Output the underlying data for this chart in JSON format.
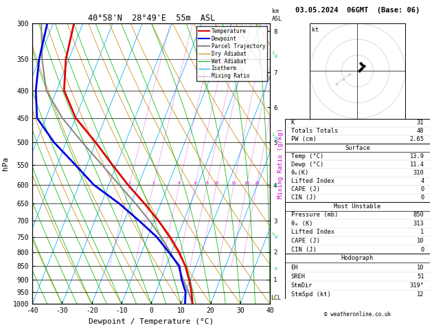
{
  "title_left": "40°58'N  28°49'E  55m  ASL",
  "title_right": "03.05.2024  06GMT  (Base: 06)",
  "xlabel": "Dewpoint / Temperature (°C)",
  "ylabel_left": "hPa",
  "p_levels": [
    300,
    350,
    400,
    450,
    500,
    550,
    600,
    650,
    700,
    750,
    800,
    850,
    900,
    950,
    1000
  ],
  "p_min": 300,
  "p_max": 1000,
  "T_min": -40,
  "T_max": 40,
  "skew_factor": 37,
  "isotherm_color": "#00aaff",
  "dry_adiabat_color": "#cc8800",
  "wet_adiabat_color": "#00bb00",
  "mixing_ratio_color": "#cc00cc",
  "temp_profile_T": [
    13.9,
    12.0,
    9.5,
    6.5,
    2.5,
    -2.5,
    -8.5,
    -15.5,
    -23.5,
    -31.5,
    -40.0,
    -50.0,
    -57.5,
    -61.0,
    -63.0
  ],
  "temp_profile_p": [
    1000,
    950,
    900,
    850,
    800,
    750,
    700,
    650,
    600,
    550,
    500,
    450,
    400,
    350,
    300
  ],
  "dewp_profile_T": [
    11.4,
    10.0,
    7.0,
    4.5,
    -1.0,
    -7.0,
    -15.0,
    -24.0,
    -35.0,
    -44.0,
    -54.0,
    -63.0,
    -67.0,
    -70.0,
    -72.0
  ],
  "dewp_profile_p": [
    1000,
    950,
    900,
    850,
    800,
    750,
    700,
    650,
    600,
    550,
    500,
    450,
    400,
    350,
    300
  ],
  "parcel_T": [
    13.9,
    11.0,
    7.5,
    4.0,
    -0.5,
    -5.5,
    -11.5,
    -18.5,
    -26.5,
    -35.0,
    -44.5,
    -54.5,
    -63.5,
    -69.0,
    -74.0
  ],
  "parcel_p": [
    1000,
    950,
    900,
    850,
    800,
    750,
    700,
    650,
    600,
    550,
    500,
    450,
    400,
    350,
    300
  ],
  "lcl_p": 975,
  "km_ticks": [
    1,
    2,
    3,
    4,
    5,
    6,
    7,
    8
  ],
  "km_pressures": [
    900,
    800,
    700,
    600,
    500,
    430,
    370,
    310
  ],
  "mixing_ratio_values": [
    1,
    2,
    4,
    6,
    8,
    10,
    15,
    20,
    25
  ],
  "info_K": 31,
  "info_TT": 48,
  "info_PW": 2.65,
  "info_surf_temp": 13.9,
  "info_surf_dewp": 11.4,
  "info_surf_theta_e": 310,
  "info_surf_li": 4,
  "info_surf_cape": 0,
  "info_surf_cin": 0,
  "info_mu_pressure": 850,
  "info_mu_theta_e": 313,
  "info_mu_li": 1,
  "info_mu_cape": 10,
  "info_mu_cin": 0,
  "info_hodo_eh": 10,
  "info_hodo_sreh": 51,
  "info_hodo_stmdir": "319°",
  "info_hodo_stmspd": 12,
  "temp_color": "#dd0000",
  "dewp_color": "#0000dd",
  "parcel_color": "#888888",
  "cyan_arrow_pressures": [
    345,
    490,
    600,
    750,
    860
  ],
  "cyan_arrow_color": "#00cccc",
  "yellow_mark_pressure": 975,
  "green_mark_pressures": [
    345,
    490,
    750
  ],
  "hodo_u": [
    1,
    2,
    3,
    4,
    3,
    2
  ],
  "hodo_v": [
    0,
    1,
    2,
    3,
    4,
    5
  ],
  "hodo_u_gray": [
    -5,
    -9,
    -13
  ],
  "hodo_v_gray": [
    -2,
    -5,
    -8
  ]
}
